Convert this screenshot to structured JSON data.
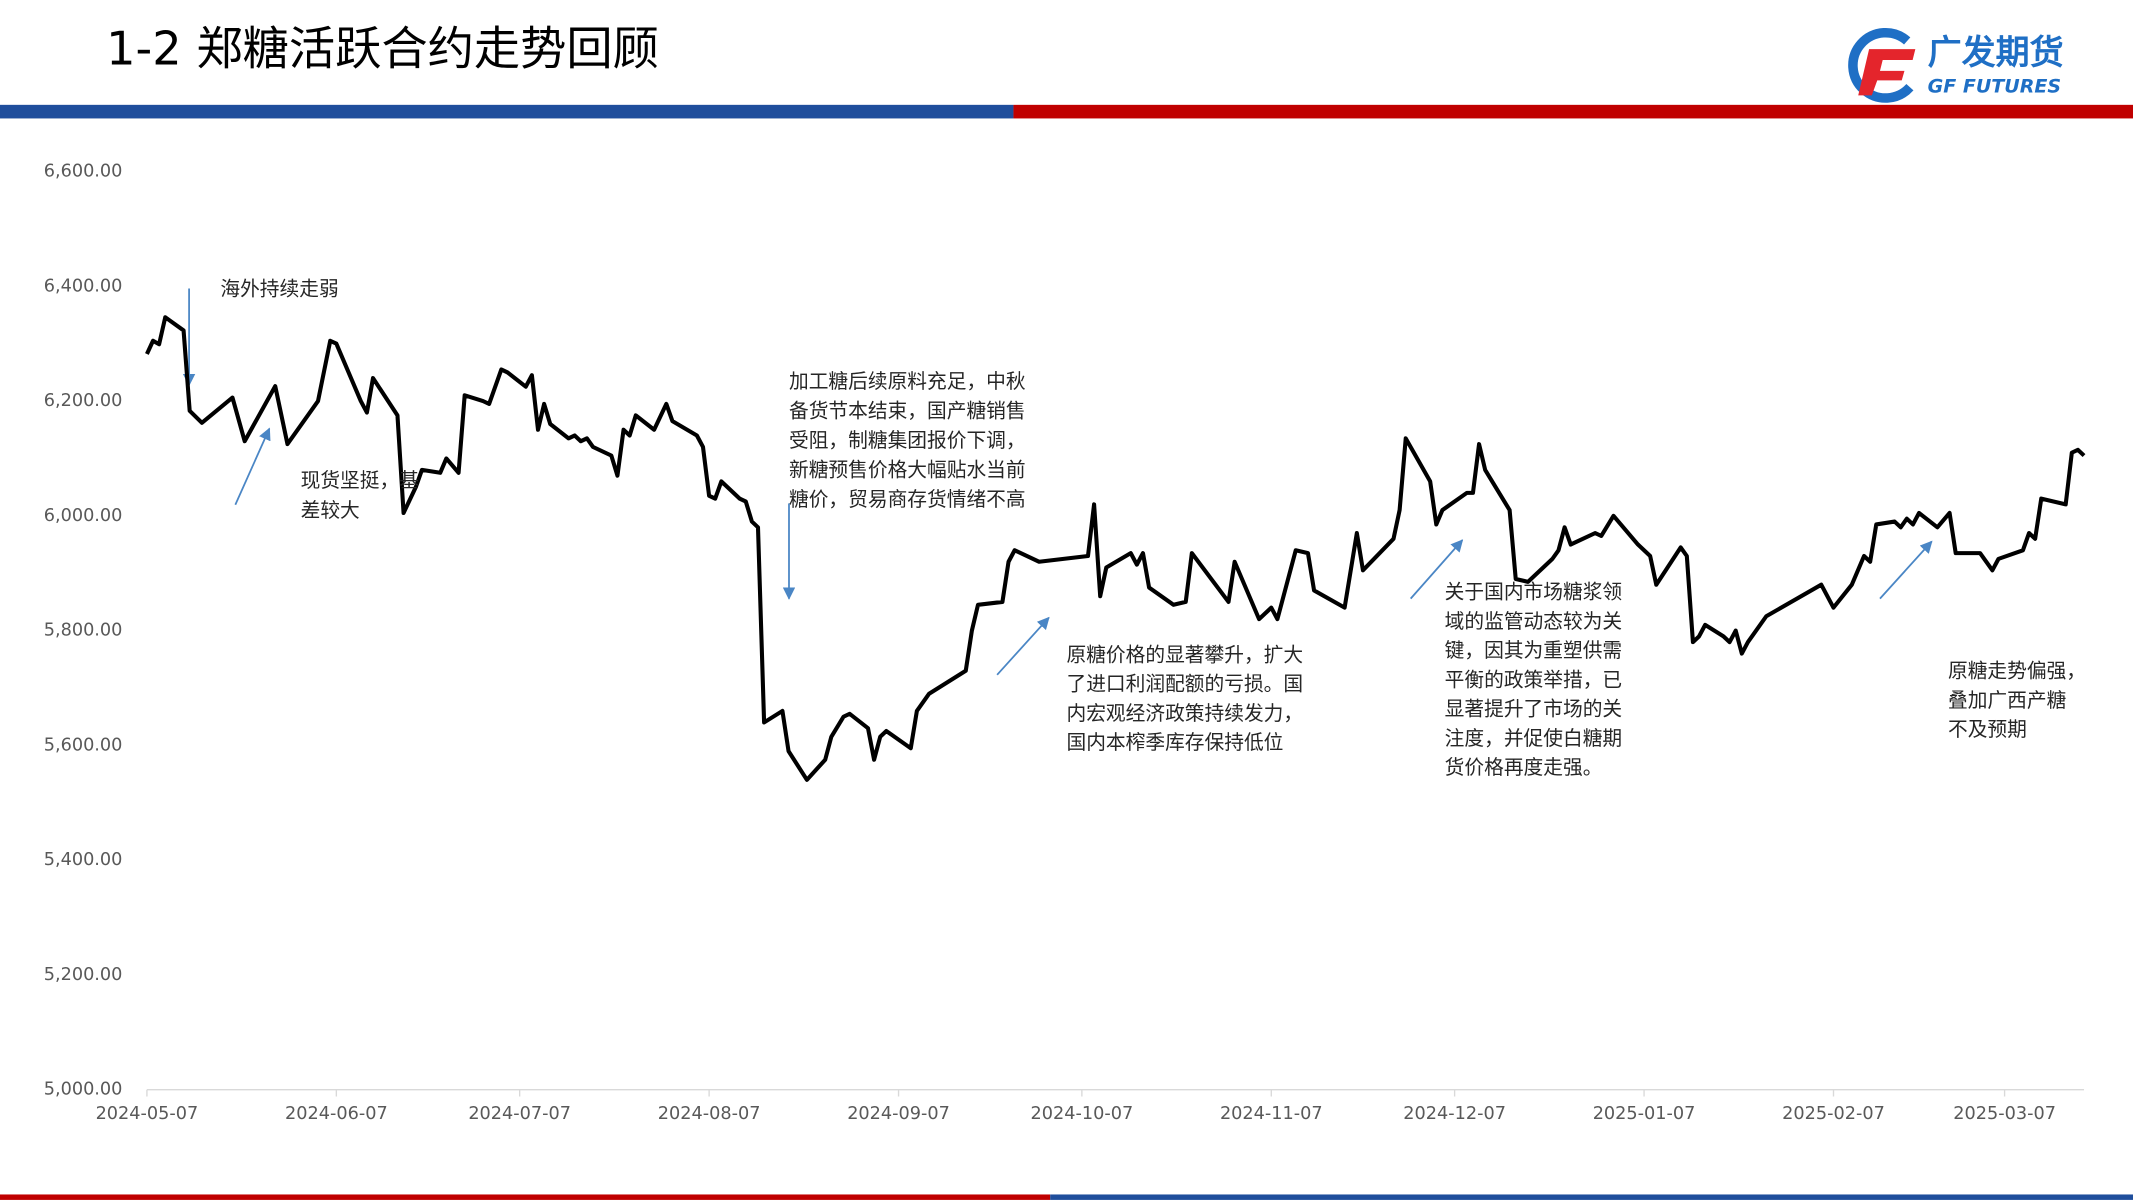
{
  "header": {
    "title": "1-2 郑糖活跃合约走势回顾",
    "logo_cn": "广发期货",
    "logo_en": "GF FUTURES"
  },
  "chart_data": {
    "type": "line",
    "color": "#000000",
    "x": [
      "2024-05-07",
      "2024-05-08",
      "2024-05-09",
      "2024-05-10",
      "2024-05-13",
      "2024-05-14",
      "2024-05-16",
      "2024-05-21",
      "2024-05-23",
      "2024-05-28",
      "2024-05-30",
      "2024-06-04",
      "2024-06-06",
      "2024-06-07",
      "2024-06-11",
      "2024-06-12",
      "2024-06-13",
      "2024-06-17",
      "2024-06-18",
      "2024-06-20",
      "2024-06-21",
      "2024-06-24",
      "2024-06-25",
      "2024-06-27",
      "2024-06-28",
      "2024-07-01",
      "2024-07-02",
      "2024-07-04",
      "2024-07-05",
      "2024-07-08",
      "2024-07-09",
      "2024-07-10",
      "2024-07-11",
      "2024-07-12",
      "2024-07-15",
      "2024-07-16",
      "2024-07-17",
      "2024-07-18",
      "2024-07-19",
      "2024-07-22",
      "2024-07-23",
      "2024-07-24",
      "2024-07-25",
      "2024-07-26",
      "2024-07-29",
      "2024-07-31",
      "2024-08-01",
      "2024-08-05",
      "2024-08-06",
      "2024-08-07",
      "2024-08-08",
      "2024-08-09",
      "2024-08-12",
      "2024-08-13",
      "2024-08-14",
      "2024-08-15",
      "2024-08-16",
      "2024-08-19",
      "2024-08-20",
      "2024-08-23",
      "2024-08-26",
      "2024-08-27",
      "2024-08-29",
      "2024-08-30",
      "2024-09-02",
      "2024-09-03",
      "2024-09-04",
      "2024-09-05",
      "2024-09-09",
      "2024-09-10",
      "2024-09-12",
      "2024-09-18",
      "2024-09-19",
      "2024-09-20",
      "2024-09-24",
      "2024-09-25",
      "2024-09-26",
      "2024-09-30",
      "2024-10-08",
      "2024-10-09",
      "2024-10-10",
      "2024-10-11",
      "2024-10-15",
      "2024-10-16",
      "2024-10-17",
      "2024-10-18",
      "2024-10-22",
      "2024-10-24",
      "2024-10-25",
      "2024-10-31",
      "2024-11-01",
      "2024-11-05",
      "2024-11-07",
      "2024-11-08",
      "2024-11-11",
      "2024-11-13",
      "2024-11-14",
      "2024-11-19",
      "2024-11-21",
      "2024-11-22",
      "2024-11-27",
      "2024-11-28",
      "2024-11-29",
      "2024-12-03",
      "2024-12-04",
      "2024-12-05",
      "2024-12-09",
      "2024-12-10",
      "2024-12-11",
      "2024-12-12",
      "2024-12-16",
      "2024-12-17",
      "2024-12-19",
      "2024-12-23",
      "2024-12-24",
      "2024-12-25",
      "2024-12-26",
      "2024-12-30",
      "2024-12-31",
      "2025-01-02",
      "2025-01-06",
      "2025-01-08",
      "2025-01-09",
      "2025-01-13",
      "2025-01-14",
      "2025-01-15",
      "2025-01-16",
      "2025-01-17",
      "2025-01-20",
      "2025-01-21",
      "2025-01-22",
      "2025-01-23",
      "2025-01-24",
      "2025-01-27",
      "2025-02-05",
      "2025-02-07",
      "2025-02-10",
      "2025-02-12",
      "2025-02-13",
      "2025-02-14",
      "2025-02-17",
      "2025-02-18",
      "2025-02-19",
      "2025-02-20",
      "2025-02-21",
      "2025-02-24",
      "2025-02-26",
      "2025-02-27",
      "2025-03-03",
      "2025-03-05",
      "2025-03-06",
      "2025-03-10",
      "2025-03-11",
      "2025-03-12",
      "2025-03-13",
      "2025-03-17",
      "2025-03-18",
      "2025-03-19",
      "2025-03-20"
    ],
    "values": [
      6282,
      6305,
      6299,
      6346,
      6323,
      6183,
      6162,
      6206,
      6130,
      6226,
      6125,
      6200,
      6305,
      6300,
      6200,
      6180,
      6240,
      6175,
      6005,
      6050,
      6080,
      6075,
      6100,
      6075,
      6210,
      6200,
      6195,
      6255,
      6250,
      6225,
      6245,
      6150,
      6195,
      6160,
      6135,
      6140,
      6130,
      6135,
      6120,
      6105,
      6070,
      6150,
      6140,
      6175,
      6150,
      6195,
      6165,
      6140,
      6120,
      6035,
      6030,
      6060,
      6030,
      6025,
      5990,
      5980,
      5640,
      5660,
      5590,
      5540,
      5575,
      5615,
      5650,
      5655,
      5630,
      5575,
      5615,
      5625,
      5595,
      5660,
      5690,
      5730,
      5800,
      5845,
      5850,
      5920,
      5940,
      5920,
      5930,
      6020,
      5860,
      5910,
      5935,
      5915,
      5935,
      5875,
      5845,
      5850,
      5935,
      5850,
      5920,
      5820,
      5840,
      5820,
      5940,
      5935,
      5870,
      5840,
      5970,
      5905,
      5960,
      6010,
      6135,
      6060,
      5985,
      6010,
      6040,
      6040,
      6125,
      6080,
      6010,
      5890,
      5885,
      5925,
      5940,
      5980,
      5950,
      5970,
      5965,
      6000,
      5950,
      5930,
      5880,
      5945,
      5930,
      5780,
      5790,
      5810,
      5790,
      5780,
      5800,
      5760,
      5780,
      5825,
      5880,
      5840,
      5880,
      5930,
      5920,
      5985,
      5990,
      5980,
      5995,
      5985,
      6005,
      5980,
      6005,
      5935,
      5935,
      5905,
      5925,
      5940,
      5970,
      5960,
      6030,
      6020,
      6110,
      6115,
      6105
    ],
    "xlim": [
      "2024-05-07",
      "2025-03-20"
    ],
    "xticks": [
      "2024-05-07",
      "2024-06-07",
      "2024-07-07",
      "2024-08-07",
      "2024-09-07",
      "2024-10-07",
      "2024-11-07",
      "2024-12-07",
      "2025-01-07",
      "2025-02-07",
      "2025-03-07"
    ],
    "ylim": [
      5000,
      6600
    ],
    "yticks": [
      {
        "value": 5000,
        "label": "5,000.00"
      },
      {
        "value": 5200,
        "label": "5,200.00"
      },
      {
        "value": 5400,
        "label": "5,400.00"
      },
      {
        "value": 5600,
        "label": "5,600.00"
      },
      {
        "value": 5800,
        "label": "5,800.00"
      },
      {
        "value": 6000,
        "label": "6,000.00"
      },
      {
        "value": 6200,
        "label": "6,200.00"
      },
      {
        "value": 6400,
        "label": "6,400.00"
      },
      {
        "value": 6600,
        "label": "6,600.00"
      }
    ],
    "grid": false,
    "annotations": [
      {
        "lines": [
          "海外持续走弱"
        ]
      },
      {
        "lines": [
          "现货坚挺，基",
          "差较大"
        ]
      },
      {
        "lines": [
          "加工糖后续原料充足，中秋",
          "备货节本结束，国产糖销售",
          "受阻，制糖集团报价下调，",
          "新糖预售价格大幅贴水当前",
          "糖价，贸易商存货情绪不高"
        ]
      },
      {
        "lines": [
          "原糖价格的显著攀升，扩大",
          "了进口利润配额的亏损。国",
          "内宏观经济政策持续发力，",
          "国内本榨季库存保持低位"
        ]
      },
      {
        "lines": [
          "关于国内市场糖浆领",
          "域的监管动态较为关",
          "键，因其为重塑供需",
          "平衡的政策举措，已",
          "显著提升了市场的关",
          "注度，并促使白糖期",
          "货价格再度走强。"
        ]
      },
      {
        "lines": [
          "原糖走势偏强，",
          "叠加广西产糖",
          "不及预期"
        ]
      }
    ]
  }
}
